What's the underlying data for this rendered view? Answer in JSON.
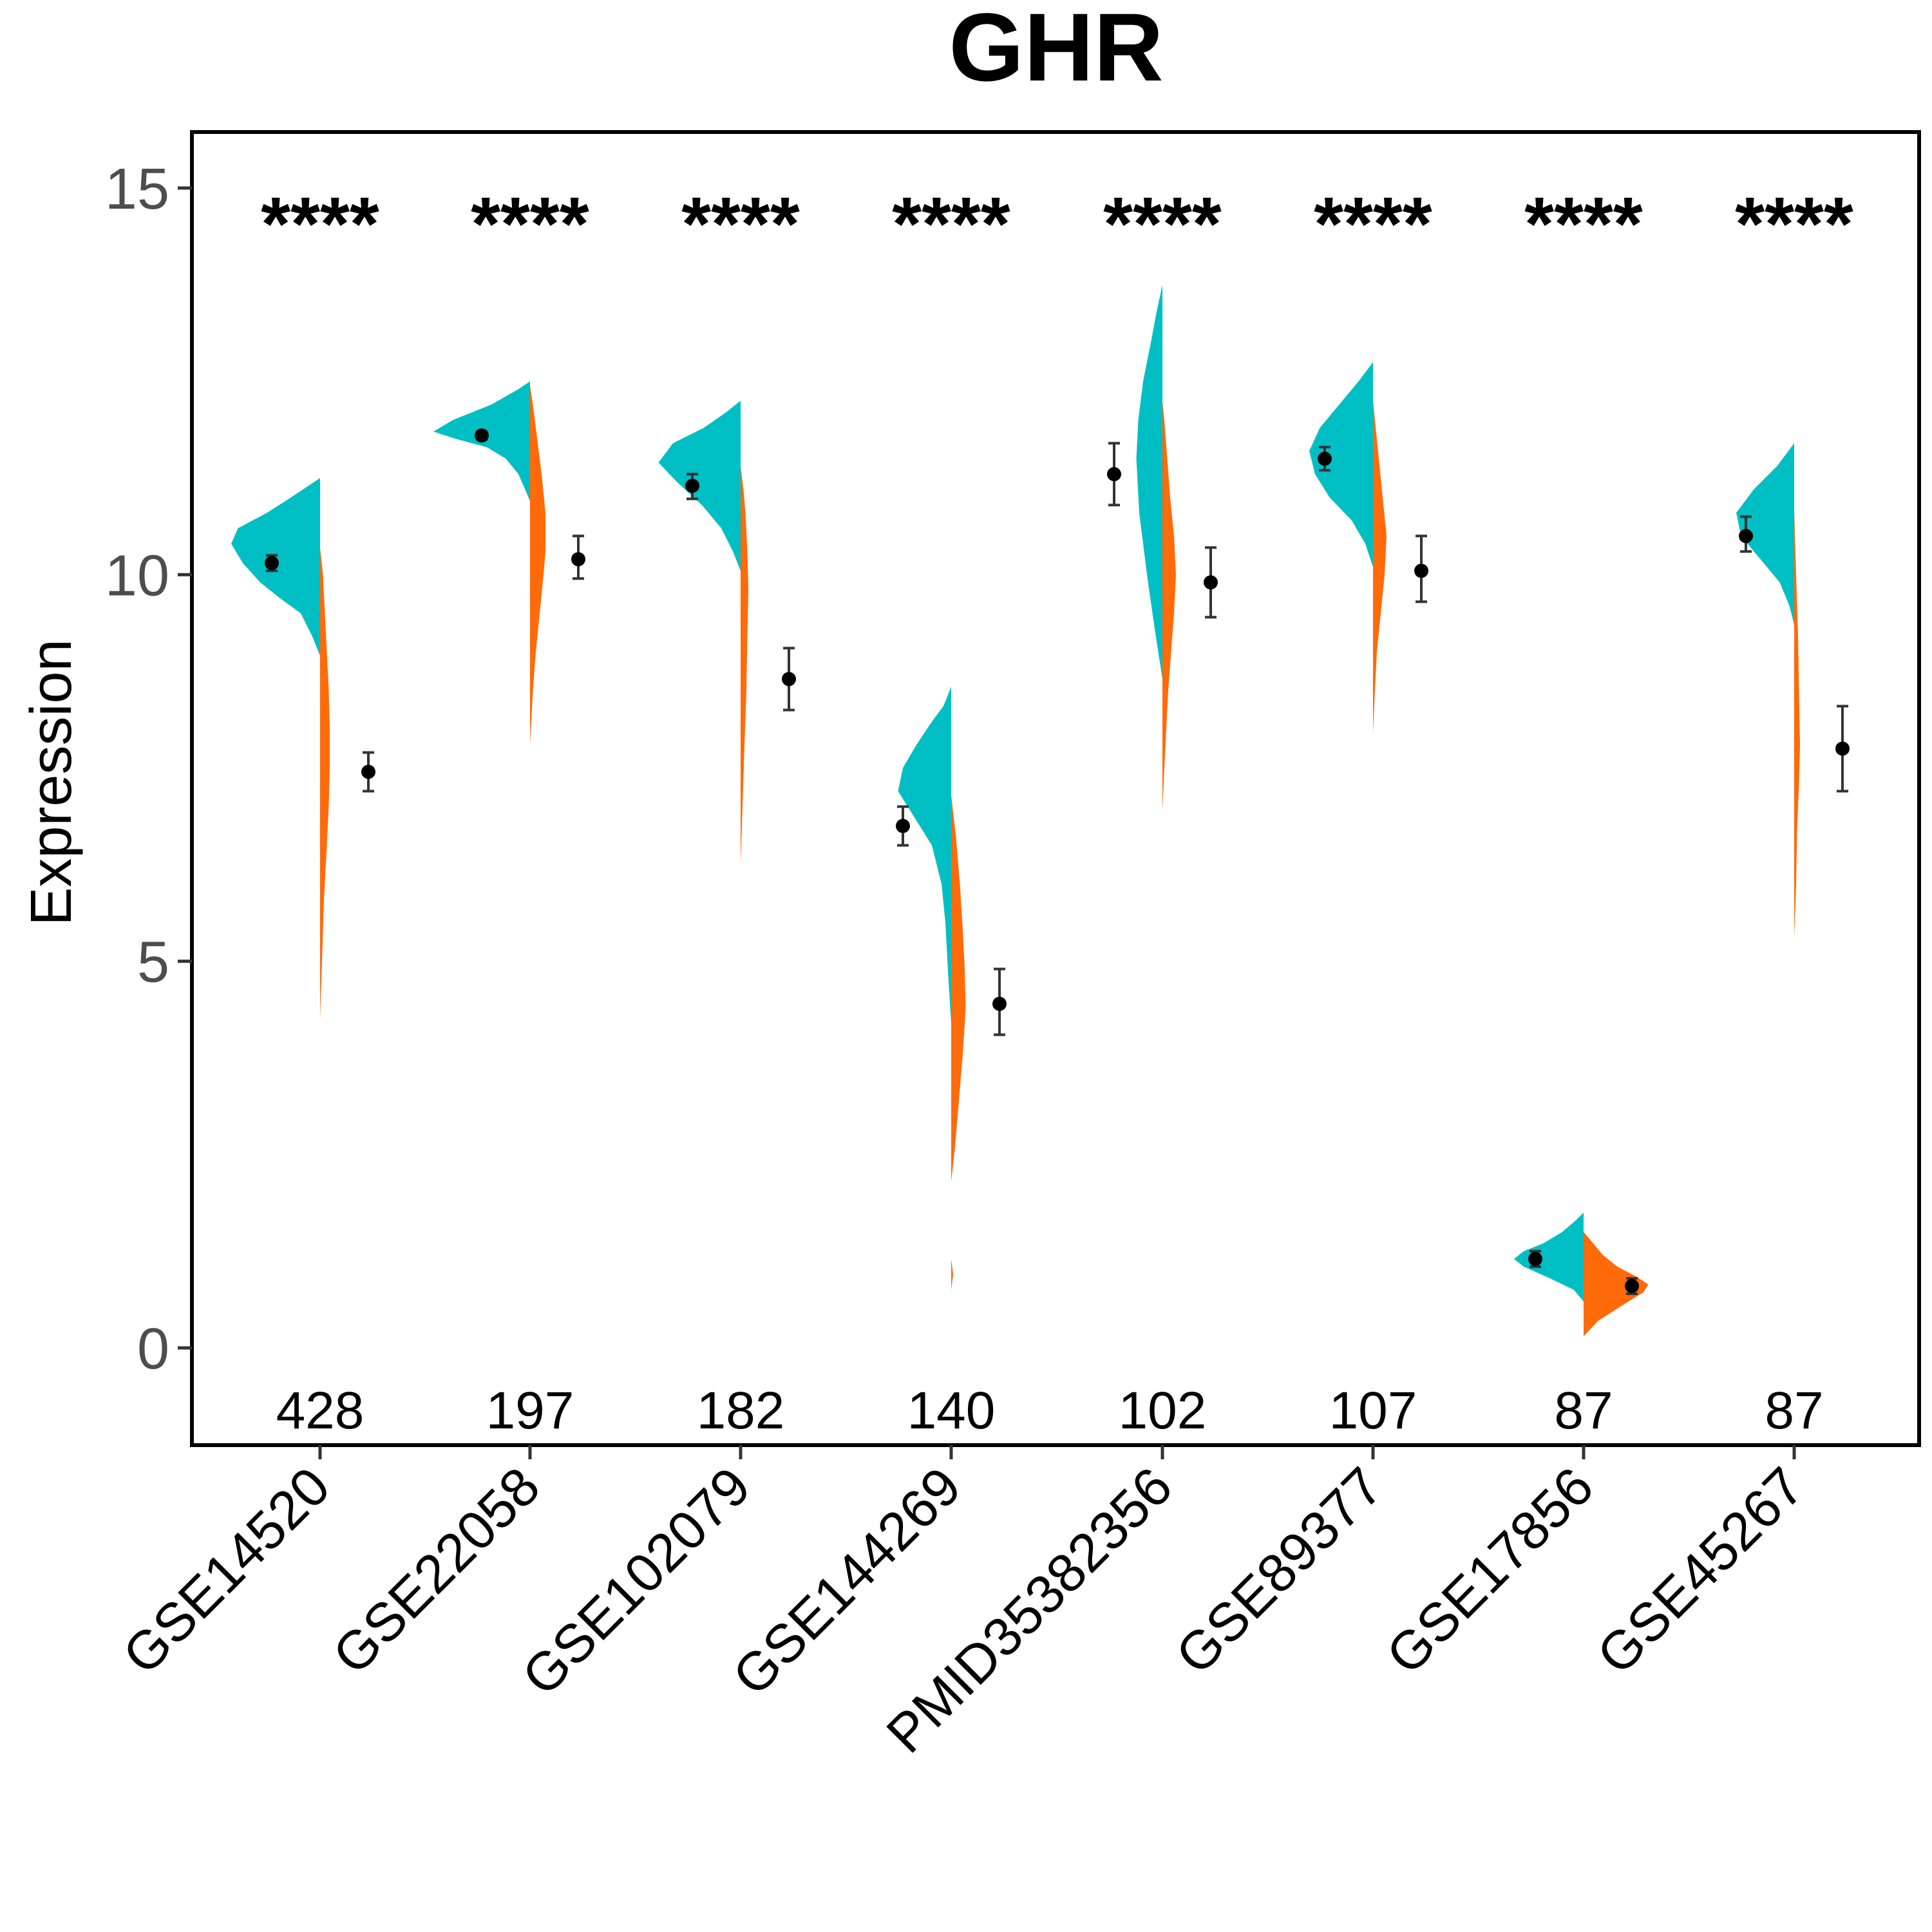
{
  "chart_data": {
    "type": "split-violin",
    "title": "GHR",
    "ylabel": "Expression",
    "xlabel": "",
    "ylim": [
      -1.2,
      15.8
    ],
    "yticks": [
      0,
      5,
      10,
      15
    ],
    "grid": false,
    "legend": "none",
    "colors": {
      "group1": "#00BFC4",
      "group2": "#FF6A0A",
      "point": "#000000",
      "errorbar": "#333333"
    },
    "categories": [
      "GSE14520",
      "GSE22058",
      "GSE102079",
      "GSE144269",
      "PMID35382356",
      "GSE89377",
      "GSE17856",
      "GSE45267"
    ],
    "counts": [
      "428",
      "197",
      "182",
      "140",
      "102",
      "107",
      "87",
      "87"
    ],
    "significance": [
      "****",
      "****",
      "****",
      "****",
      "****",
      "****",
      "****",
      "****"
    ],
    "series": [
      {
        "means": [
          10.15,
          11.8,
          11.15,
          6.75,
          11.3,
          11.5,
          1.15,
          10.5
        ],
        "err_low": [
          10.05,
          11.75,
          10.98,
          6.5,
          10.9,
          11.35,
          1.05,
          10.3
        ],
        "err_high": [
          10.25,
          11.85,
          11.3,
          7.0,
          11.7,
          11.65,
          1.25,
          10.75
        ],
        "violins": [
          {
            "min": 8.95,
            "max": 11.25,
            "profile": [
              [
                8.95,
                0.0
              ],
              [
                9.2,
                0.08
              ],
              [
                9.5,
                0.2
              ],
              [
                9.7,
                0.42
              ],
              [
                9.9,
                0.62
              ],
              [
                10.15,
                0.8
              ],
              [
                10.4,
                0.92
              ],
              [
                10.6,
                0.85
              ],
              [
                10.8,
                0.55
              ],
              [
                11.0,
                0.3
              ],
              [
                11.25,
                0.0
              ]
            ]
          },
          {
            "min": 10.95,
            "max": 12.5,
            "profile": [
              [
                10.95,
                0.0
              ],
              [
                11.1,
                0.05
              ],
              [
                11.3,
                0.12
              ],
              [
                11.5,
                0.25
              ],
              [
                11.65,
                0.45
              ],
              [
                11.75,
                0.75
              ],
              [
                11.85,
                1.0
              ],
              [
                12.0,
                0.8
              ],
              [
                12.2,
                0.4
              ],
              [
                12.4,
                0.12
              ],
              [
                12.5,
                0.0
              ]
            ]
          },
          {
            "min": 10.05,
            "max": 12.25,
            "profile": [
              [
                10.05,
                0.0
              ],
              [
                10.3,
                0.08
              ],
              [
                10.6,
                0.2
              ],
              [
                10.9,
                0.4
              ],
              [
                11.2,
                0.66
              ],
              [
                11.45,
                0.85
              ],
              [
                11.7,
                0.7
              ],
              [
                11.9,
                0.38
              ],
              [
                12.1,
                0.15
              ],
              [
                12.25,
                0.0
              ]
            ]
          },
          {
            "min": 4.2,
            "max": 8.55,
            "profile": [
              [
                4.2,
                0.0
              ],
              [
                4.8,
                0.03
              ],
              [
                5.5,
                0.06
              ],
              [
                6.0,
                0.1
              ],
              [
                6.5,
                0.2
              ],
              [
                6.9,
                0.4
              ],
              [
                7.2,
                0.55
              ],
              [
                7.5,
                0.5
              ],
              [
                7.8,
                0.36
              ],
              [
                8.1,
                0.2
              ],
              [
                8.3,
                0.08
              ],
              [
                8.55,
                0.0
              ]
            ]
          },
          {
            "min": 8.65,
            "max": 13.75,
            "profile": [
              [
                8.65,
                0.0
              ],
              [
                9.3,
                0.08
              ],
              [
                10.0,
                0.16
              ],
              [
                10.8,
                0.24
              ],
              [
                11.5,
                0.27
              ],
              [
                12.0,
                0.25
              ],
              [
                12.5,
                0.2
              ],
              [
                13.0,
                0.12
              ],
              [
                13.4,
                0.06
              ],
              [
                13.75,
                0.0
              ]
            ]
          },
          {
            "min": 10.1,
            "max": 12.75,
            "profile": [
              [
                10.1,
                0.0
              ],
              [
                10.4,
                0.08
              ],
              [
                10.7,
                0.22
              ],
              [
                11.0,
                0.45
              ],
              [
                11.3,
                0.6
              ],
              [
                11.6,
                0.66
              ],
              [
                11.9,
                0.55
              ],
              [
                12.2,
                0.35
              ],
              [
                12.5,
                0.15
              ],
              [
                12.75,
                0.0
              ]
            ]
          },
          {
            "min": 0.6,
            "max": 1.75,
            "profile": [
              [
                0.6,
                0.0
              ],
              [
                0.75,
                0.1
              ],
              [
                0.9,
                0.35
              ],
              [
                1.05,
                0.62
              ],
              [
                1.15,
                0.72
              ],
              [
                1.25,
                0.62
              ],
              [
                1.35,
                0.42
              ],
              [
                1.5,
                0.22
              ],
              [
                1.65,
                0.08
              ],
              [
                1.75,
                0.0
              ]
            ]
          },
          {
            "min": 9.35,
            "max": 11.7,
            "profile": [
              [
                9.35,
                0.0
              ],
              [
                9.6,
                0.05
              ],
              [
                9.9,
                0.15
              ],
              [
                10.2,
                0.35
              ],
              [
                10.5,
                0.55
              ],
              [
                10.8,
                0.6
              ],
              [
                11.1,
                0.42
              ],
              [
                11.4,
                0.18
              ],
              [
                11.7,
                0.0
              ]
            ]
          }
        ]
      },
      {
        "means": [
          7.45,
          10.2,
          8.65,
          4.45,
          9.9,
          10.05,
          0.8,
          7.75
        ],
        "err_low": [
          7.2,
          9.95,
          8.25,
          4.05,
          9.45,
          9.65,
          0.7,
          7.2
        ],
        "err_high": [
          7.7,
          10.5,
          9.05,
          4.9,
          10.35,
          10.5,
          0.9,
          8.3
        ],
        "violins": [
          {
            "min": 4.25,
            "max": 10.35,
            "profile": [
              [
                4.25,
                0.0
              ],
              [
                5.0,
                0.02
              ],
              [
                5.8,
                0.04
              ],
              [
                6.5,
                0.07
              ],
              [
                7.0,
                0.09
              ],
              [
                7.5,
                0.1
              ],
              [
                8.0,
                0.1
              ],
              [
                8.5,
                0.09
              ],
              [
                9.0,
                0.07
              ],
              [
                9.5,
                0.05
              ],
              [
                10.0,
                0.03
              ],
              [
                10.35,
                0.0
              ]
            ]
          },
          {
            "min": 7.8,
            "max": 12.45,
            "profile": [
              [
                7.8,
                0.0
              ],
              [
                8.5,
                0.03
              ],
              [
                9.0,
                0.06
              ],
              [
                9.5,
                0.1
              ],
              [
                10.0,
                0.14
              ],
              [
                10.3,
                0.16
              ],
              [
                10.8,
                0.16
              ],
              [
                11.3,
                0.12
              ],
              [
                11.8,
                0.07
              ],
              [
                12.2,
                0.03
              ],
              [
                12.45,
                0.0
              ]
            ]
          },
          {
            "min": 6.25,
            "max": 11.4,
            "profile": [
              [
                6.25,
                0.0
              ],
              [
                7.0,
                0.02
              ],
              [
                7.8,
                0.04
              ],
              [
                8.5,
                0.06
              ],
              [
                9.2,
                0.07
              ],
              [
                9.8,
                0.08
              ],
              [
                10.3,
                0.07
              ],
              [
                10.8,
                0.05
              ],
              [
                11.1,
                0.03
              ],
              [
                11.4,
                0.0
              ]
            ]
          },
          {
            "min": 2.15,
            "max": 7.15,
            "profile": [
              [
                2.15,
                0.0
              ],
              [
                2.6,
                0.04
              ],
              [
                3.2,
                0.08
              ],
              [
                3.8,
                0.12
              ],
              [
                4.4,
                0.15
              ],
              [
                4.9,
                0.14
              ],
              [
                5.4,
                0.12
              ],
              [
                6.0,
                0.09
              ],
              [
                6.6,
                0.05
              ],
              [
                7.15,
                0.0
              ]
            ]
          },
          {
            "min": 6.95,
            "max": 12.25,
            "profile": [
              [
                6.95,
                0.0
              ],
              [
                7.5,
                0.02
              ],
              [
                8.0,
                0.04
              ],
              [
                8.5,
                0.06
              ],
              [
                9.0,
                0.09
              ],
              [
                9.5,
                0.12
              ],
              [
                10.0,
                0.14
              ],
              [
                10.5,
                0.12
              ],
              [
                11.0,
                0.08
              ],
              [
                11.5,
                0.05
              ],
              [
                12.0,
                0.02
              ],
              [
                12.25,
                0.0
              ]
            ]
          },
          {
            "min": 7.95,
            "max": 12.25,
            "profile": [
              [
                7.95,
                0.0
              ],
              [
                8.5,
                0.02
              ],
              [
                9.0,
                0.04
              ],
              [
                9.5,
                0.08
              ],
              [
                10.0,
                0.12
              ],
              [
                10.5,
                0.14
              ],
              [
                11.0,
                0.1
              ],
              [
                11.5,
                0.06
              ],
              [
                12.0,
                0.02
              ],
              [
                12.25,
                0.0
              ]
            ]
          },
          {
            "min": 0.15,
            "max": 1.5,
            "profile": [
              [
                0.15,
                0.0
              ],
              [
                0.35,
                0.15
              ],
              [
                0.55,
                0.4
              ],
              [
                0.72,
                0.62
              ],
              [
                0.82,
                0.67
              ],
              [
                0.92,
                0.55
              ],
              [
                1.05,
                0.35
              ],
              [
                1.2,
                0.2
              ],
              [
                1.35,
                0.1
              ],
              [
                1.5,
                0.0
              ]
            ]
          },
          {
            "min": 5.3,
            "max": 10.85,
            "profile": [
              [
                5.3,
                0.0
              ],
              [
                6.0,
                0.02
              ],
              [
                6.7,
                0.03
              ],
              [
                7.3,
                0.05
              ],
              [
                7.8,
                0.06
              ],
              [
                8.5,
                0.05
              ],
              [
                9.2,
                0.04
              ],
              [
                10.0,
                0.02
              ],
              [
                10.85,
                0.0
              ]
            ]
          }
        ]
      }
    ],
    "extra_fragments": [
      {
        "category_index": 3,
        "series_index": 1,
        "min": 0.75,
        "max": 1.15
      }
    ]
  }
}
